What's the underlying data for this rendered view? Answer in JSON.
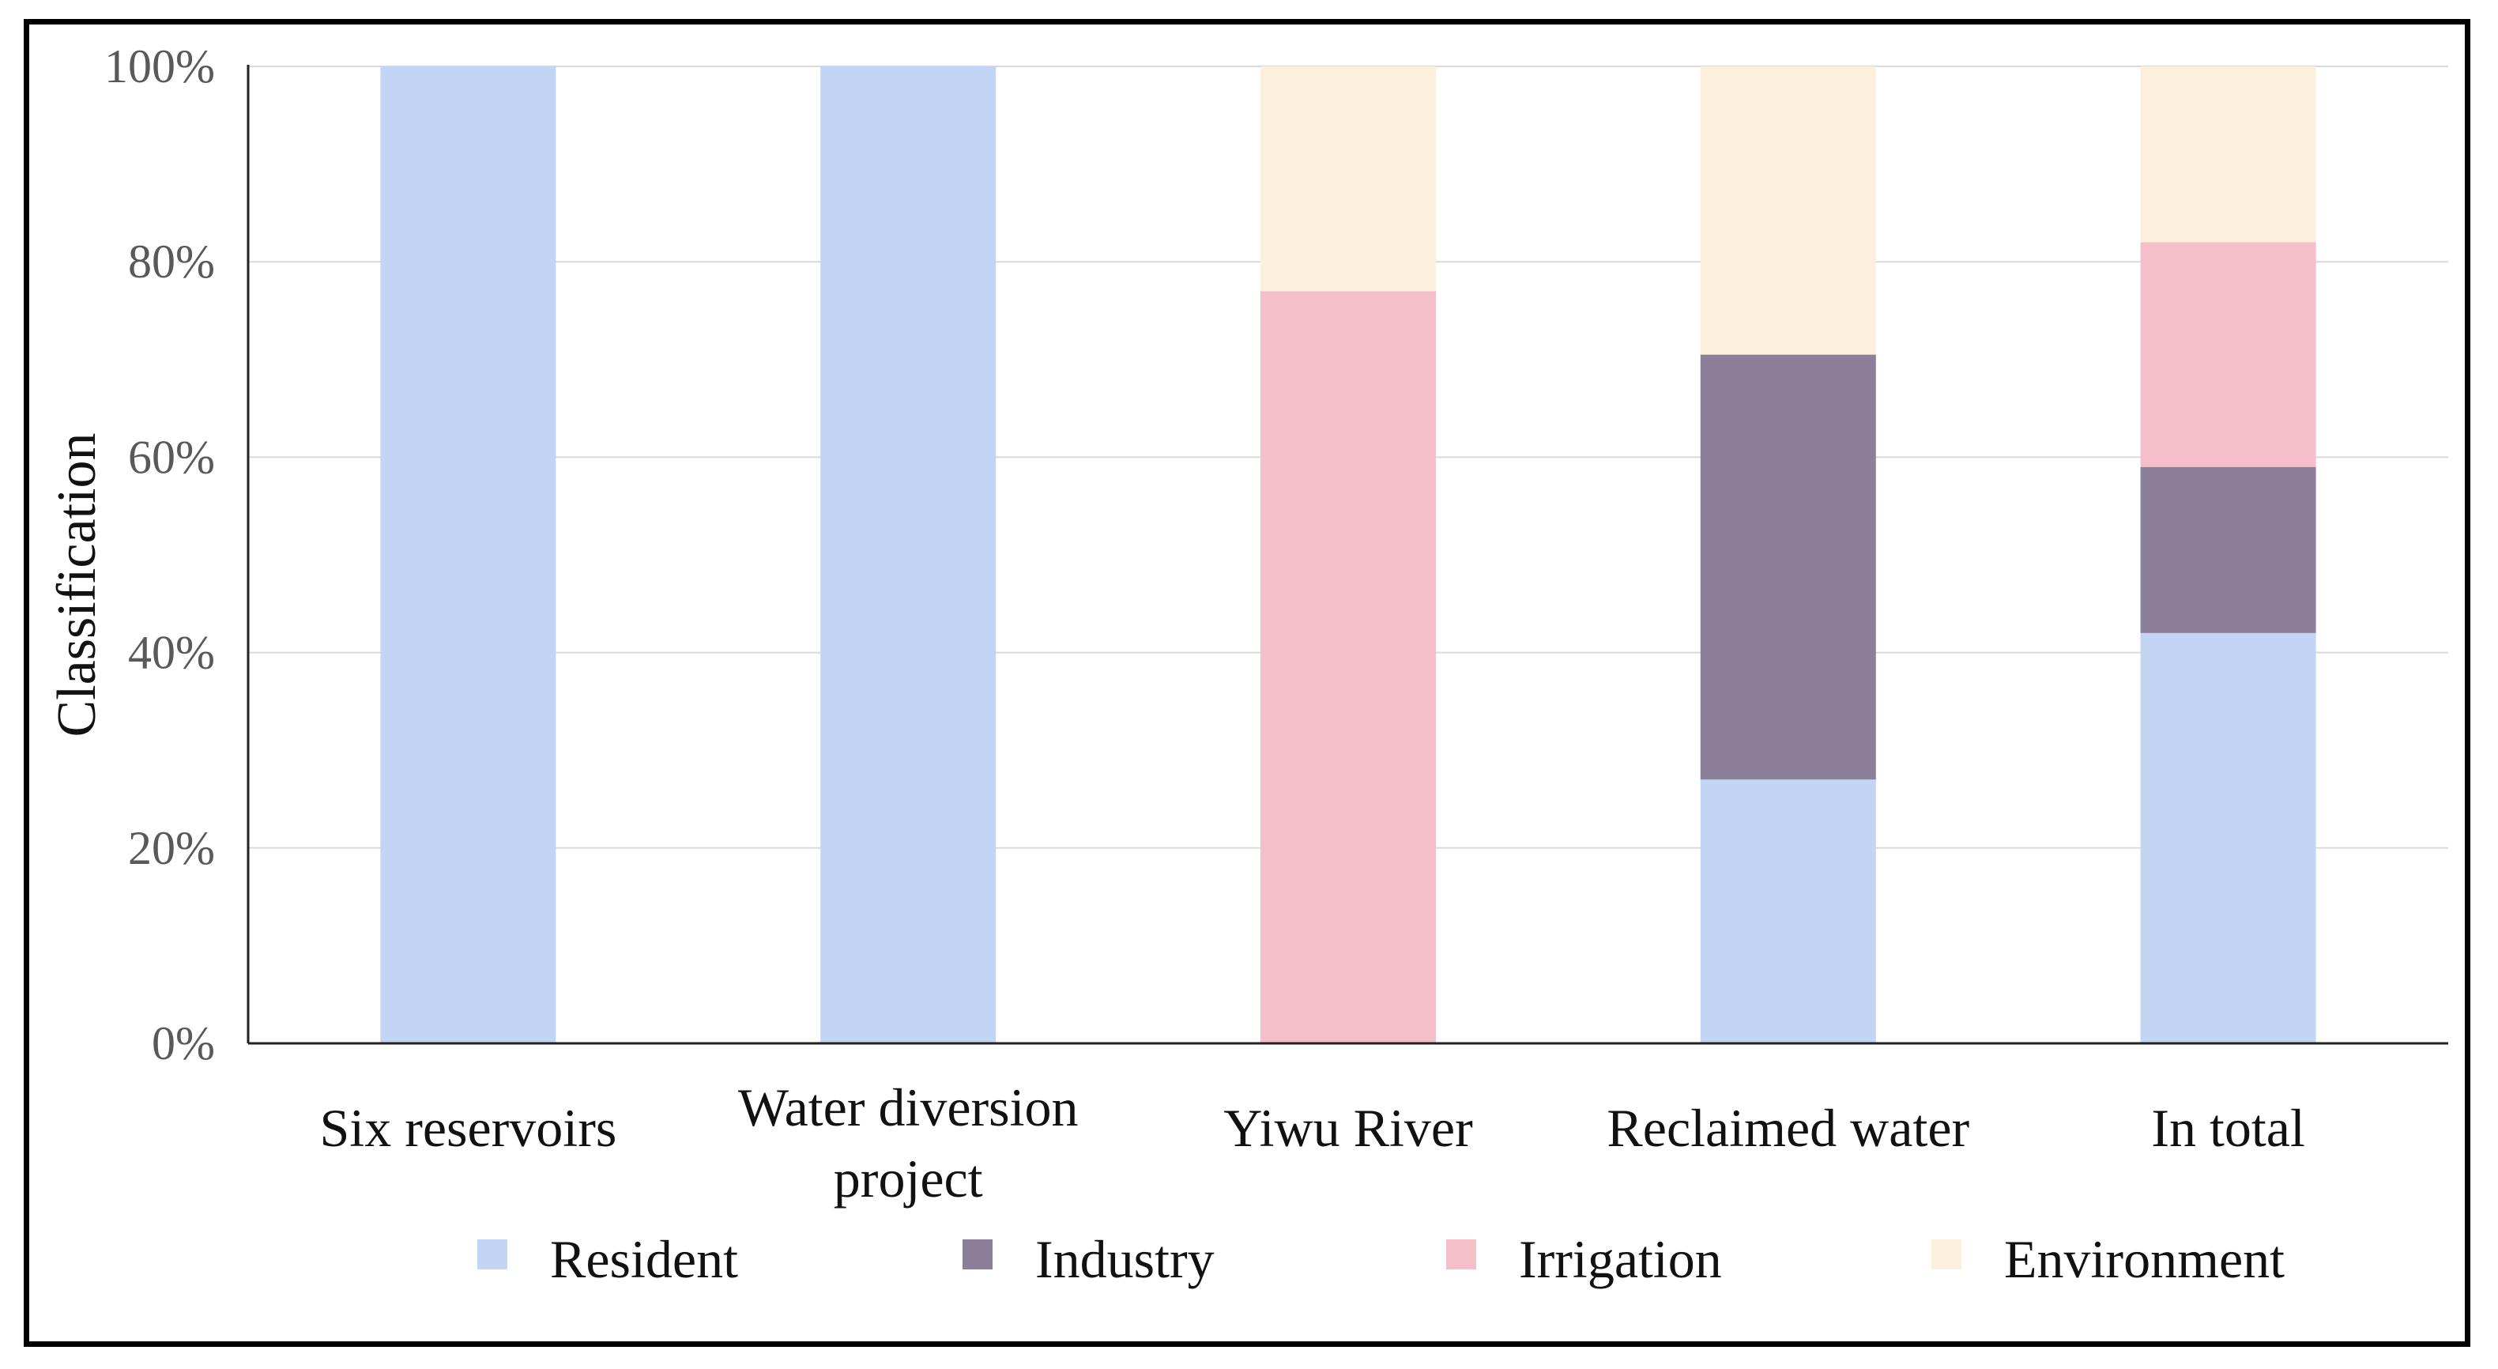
{
  "chart_data": {
    "type": "bar",
    "stacked": true,
    "percent_axis": true,
    "categories": [
      "Six reservoirs",
      "Water diversion project",
      "Yiwu River",
      "Reclaimed water",
      "In total"
    ],
    "category_lines": [
      [
        "Six reservoirs"
      ],
      [
        "Water diversion",
        "project"
      ],
      [
        "Yiwu River"
      ],
      [
        "Reclaimed water"
      ],
      [
        "In total"
      ]
    ],
    "series": [
      {
        "name": "Resident",
        "color": "#c2d5f4",
        "values": [
          100,
          100,
          0,
          27,
          42
        ]
      },
      {
        "name": "Industry",
        "color": "#8c7f9b",
        "values": [
          0,
          0,
          0,
          43.5,
          17
        ]
      },
      {
        "name": "Irrigation",
        "color": "#f5bfc9",
        "values": [
          0,
          0,
          77,
          0,
          23
        ]
      },
      {
        "name": "Environment",
        "color": "#fcefdb",
        "values": [
          0,
          0,
          23,
          29.5,
          18
        ]
      }
    ],
    "ylabel": "Classification",
    "xlabel": "",
    "ylim": [
      0,
      100
    ],
    "yticks": [
      "0%",
      "20%",
      "40%",
      "60%",
      "80%",
      "100%"
    ],
    "legend": "bottom",
    "grid": true
  }
}
